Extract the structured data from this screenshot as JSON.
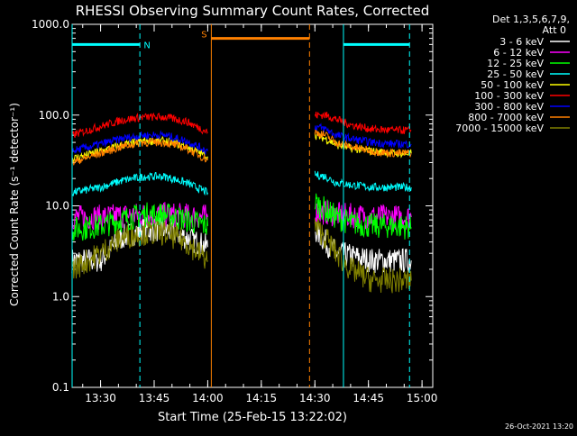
{
  "chart_data": {
    "type": "line",
    "title": "RHESSI Observing Summary Count Rates, Corrected",
    "xlabel": "Start Time (25-Feb-15 13:22:02)",
    "ylabel": "Corrected Count Rate (s⁻¹ detector⁻¹)",
    "y_scale": "log",
    "ylim": [
      0.1,
      1000
    ],
    "xlim": [
      "13:22:02",
      "15:03:00"
    ],
    "x_unit": "time (HH:MM)",
    "y_ticks": [
      "0.1",
      "1.0",
      "10.0",
      "100.0",
      "1000.0"
    ],
    "x_ticks": [
      "13:30",
      "13:45",
      "14:00",
      "14:15",
      "14:30",
      "14:45",
      "15:00"
    ],
    "legend_header": [
      "Det 1,3,5,6,7,9,",
      "Att 0"
    ],
    "legend_position": "right",
    "annotations": [
      {
        "label": "N",
        "color": "#00ffff",
        "segments": [
          [
            "13:22:02",
            "13:41:00"
          ],
          [
            "14:38:00",
            "14:56:30"
          ]
        ],
        "y": 600
      },
      {
        "label": "S",
        "color": "#ff8000",
        "segments": [
          [
            "14:01:00",
            "14:28:30"
          ]
        ],
        "y": 700
      }
    ],
    "vertical_lines": [
      {
        "x": "13:41:00",
        "color": "#00ffff",
        "style": "dashed"
      },
      {
        "x": "14:56:30",
        "color": "#00ffff",
        "style": "dashed"
      },
      {
        "x": "14:28:30",
        "color": "#ff8000",
        "style": "dashed"
      },
      {
        "x": "13:22:02",
        "color": "#00ffff",
        "style": "solid"
      },
      {
        "x": "14:38:00",
        "color": "#00ffff",
        "style": "solid"
      },
      {
        "x": "14:01:00",
        "color": "#ff8000",
        "style": "solid"
      }
    ],
    "gaps": [
      [
        "14:02:00",
        "14:28:00"
      ]
    ],
    "series": [
      {
        "name": "3 - 6 keV",
        "color": "#ffffff",
        "x": [
          "13:22",
          "13:30",
          "13:36",
          "13:42",
          "13:48",
          "13:54",
          "14:00",
          "14:30",
          "14:33",
          "14:36",
          "14:40",
          "14:46",
          "14:52",
          "14:57"
        ],
        "y": [
          2.5,
          2.5,
          4.5,
          5.5,
          5.5,
          4.5,
          3.5,
          5.5,
          4.0,
          3.0,
          2.8,
          2.5,
          2.5,
          2.5
        ]
      },
      {
        "name": "6 - 12 keV",
        "color": "#ff00ff",
        "x": [
          "13:22",
          "13:30",
          "13:36",
          "13:42",
          "13:48",
          "13:54",
          "14:00",
          "14:30",
          "14:33",
          "14:36",
          "14:40",
          "14:46",
          "14:52",
          "14:57"
        ],
        "y": [
          7.5,
          7.5,
          7.8,
          8.0,
          8.0,
          7.8,
          7.5,
          8.5,
          8.5,
          8.0,
          7.8,
          7.6,
          7.5,
          7.5
        ]
      },
      {
        "name": "12 - 25 keV",
        "color": "#00ff00",
        "x": [
          "13:22",
          "13:30",
          "13:36",
          "13:42",
          "13:48",
          "13:54",
          "14:00",
          "14:30",
          "14:33",
          "14:36",
          "14:40",
          "14:46",
          "14:52",
          "14:57"
        ],
        "y": [
          5.5,
          6.0,
          7.0,
          8.0,
          8.0,
          7.0,
          6.0,
          11.0,
          9.0,
          7.5,
          6.5,
          6.0,
          6.0,
          5.8
        ]
      },
      {
        "name": "25 - 50 keV",
        "color": "#00ffff",
        "x": [
          "13:22",
          "13:30",
          "13:36",
          "13:42",
          "13:48",
          "13:54",
          "14:00",
          "14:30",
          "14:33",
          "14:36",
          "14:40",
          "14:46",
          "14:52",
          "14:57"
        ],
        "y": [
          14,
          16,
          19,
          21,
          21,
          18,
          14,
          22,
          21,
          18,
          17,
          16,
          16,
          16
        ]
      },
      {
        "name": "50 - 100 keV",
        "color": "#ffff00",
        "x": [
          "13:22",
          "13:30",
          "13:36",
          "13:42",
          "13:48",
          "13:54",
          "14:00",
          "14:30",
          "14:33",
          "14:36",
          "14:40",
          "14:46",
          "14:52",
          "14:57"
        ],
        "y": [
          33,
          40,
          47,
          52,
          52,
          45,
          35,
          60,
          55,
          47,
          43,
          40,
          38,
          38
        ]
      },
      {
        "name": "100 - 300 keV",
        "color": "#ff0000",
        "x": [
          "13:22",
          "13:30",
          "13:36",
          "13:42",
          "13:48",
          "13:54",
          "14:00",
          "14:30",
          "14:33",
          "14:36",
          "14:40",
          "14:46",
          "14:52",
          "14:57"
        ],
        "y": [
          60,
          75,
          88,
          95,
          95,
          85,
          65,
          100,
          100,
          90,
          78,
          70,
          68,
          68
        ]
      },
      {
        "name": "300 - 800 keV",
        "color": "#0000ff",
        "x": [
          "13:22",
          "13:30",
          "13:36",
          "13:42",
          "13:48",
          "13:54",
          "14:00",
          "14:30",
          "14:33",
          "14:36",
          "14:40",
          "14:46",
          "14:52",
          "14:57"
        ],
        "y": [
          40,
          48,
          55,
          60,
          60,
          52,
          40,
          75,
          70,
          60,
          55,
          50,
          48,
          48
        ]
      },
      {
        "name": "800 - 7000 keV",
        "color": "#ff8000",
        "x": [
          "13:22",
          "13:30",
          "13:36",
          "13:42",
          "13:48",
          "13:54",
          "14:00",
          "14:30",
          "14:33",
          "14:36",
          "14:40",
          "14:46",
          "14:52",
          "14:57"
        ],
        "y": [
          30,
          38,
          45,
          50,
          50,
          43,
          32,
          65,
          60,
          50,
          45,
          40,
          38,
          38
        ]
      },
      {
        "name": "7000 - 15000 keV",
        "color": "#808000",
        "x": [
          "13:22",
          "13:30",
          "13:36",
          "13:42",
          "13:48",
          "13:54",
          "14:00",
          "14:30",
          "14:33",
          "14:36",
          "14:40",
          "14:46",
          "14:52",
          "14:57"
        ],
        "y": [
          2.0,
          3.0,
          4.5,
          5.0,
          5.0,
          4.0,
          2.5,
          6.0,
          4.5,
          3.0,
          2.0,
          1.5,
          1.5,
          1.5
        ]
      }
    ]
  },
  "footer_timestamp": "26-Oct-2021 13:20"
}
